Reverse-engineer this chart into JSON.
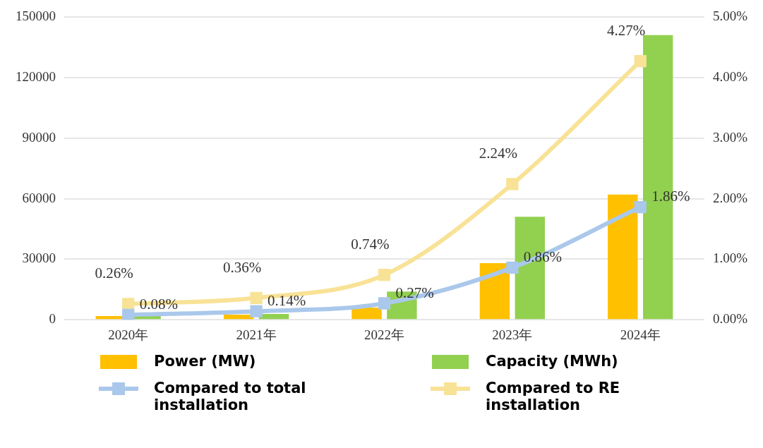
{
  "chart_data": {
    "type": "bar",
    "categories": [
      "2020年",
      "2021年",
      "2022年",
      "2023年",
      "2024年"
    ],
    "series": [
      {
        "name": "Power (MW)",
        "color": "#ffc000",
        "values": [
          1800,
          2500,
          6000,
          28000,
          62000
        ]
      },
      {
        "name": "Capacity (MWh)",
        "color": "#92d050",
        "values": [
          2000,
          2900,
          14000,
          51000,
          141000
        ]
      },
      {
        "name": "Compared to total installation",
        "type": "line",
        "axis": "y2",
        "color": "#aac8eb",
        "values": [
          0.08,
          0.14,
          0.27,
          0.86,
          1.86
        ],
        "value_labels": [
          "0.08%",
          "0.14%",
          "0.27%",
          "0.86%",
          "1.86%"
        ]
      },
      {
        "name": "Compared to RE installation",
        "type": "line",
        "axis": "y2",
        "color": "#f8e296",
        "values": [
          0.26,
          0.36,
          0.74,
          2.24,
          4.27
        ],
        "value_labels": [
          "0.26%",
          "0.36%",
          "0.74%",
          "2.24%",
          "4.27%"
        ]
      }
    ],
    "ylim": [
      0,
      150000
    ],
    "yticks": [
      0,
      30000,
      60000,
      90000,
      120000,
      150000
    ],
    "y2lim": [
      0,
      5
    ],
    "y2ticks": [
      {
        "value": 0,
        "label": "0.00%"
      },
      {
        "value": 1,
        "label": "1.00%"
      },
      {
        "value": 2,
        "label": "2.00%"
      },
      {
        "value": 3,
        "label": "3.00%"
      },
      {
        "value": 4,
        "label": "4.00%"
      },
      {
        "value": 5,
        "label": "5.00%"
      }
    ],
    "grid": "y",
    "legend": "bottom",
    "marker": "square",
    "line_style": "solid"
  }
}
